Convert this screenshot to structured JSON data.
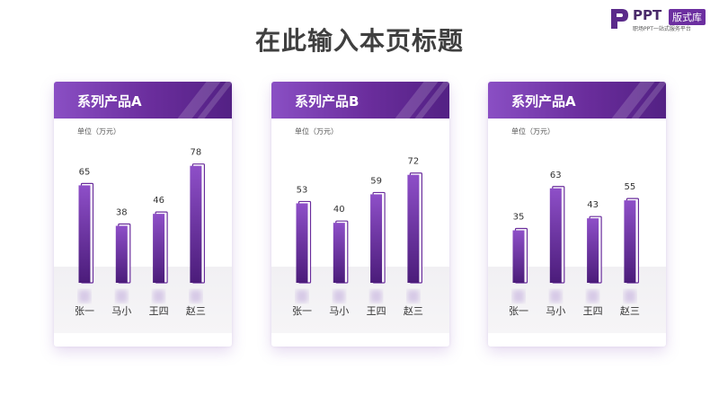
{
  "page": {
    "title": "在此输入本页标题"
  },
  "logo": {
    "name": "PPT",
    "badge": "版式库",
    "tagline": "职场PPT一站式服务平台"
  },
  "colors": {
    "header_start": "#8a4fc4",
    "header_end": "#532184",
    "bar_top": "#8e4fc8",
    "bar_bottom": "#4b1c7a",
    "title_text": "#3f3f3f"
  },
  "chart_data": [
    {
      "type": "bar",
      "title": "系列产品A",
      "unit_label": "单位（万元）",
      "categories": [
        "张一",
        "马小",
        "王四",
        "赵三"
      ],
      "values": [
        65,
        38,
        46,
        78
      ],
      "ylim": [
        0,
        85
      ],
      "grid": false,
      "data_labels": true
    },
    {
      "type": "bar",
      "title": "系列产品B",
      "unit_label": "单位（万元）",
      "categories": [
        "张一",
        "马小",
        "王四",
        "赵三"
      ],
      "values": [
        53,
        40,
        59,
        72
      ],
      "ylim": [
        0,
        85
      ],
      "grid": false,
      "data_labels": true
    },
    {
      "type": "bar",
      "title": "系列产品A",
      "unit_label": "单位（万元）",
      "categories": [
        "张一",
        "马小",
        "王四",
        "赵三"
      ],
      "values": [
        35,
        63,
        43,
        55
      ],
      "ylim": [
        0,
        85
      ],
      "grid": false,
      "data_labels": true
    }
  ]
}
